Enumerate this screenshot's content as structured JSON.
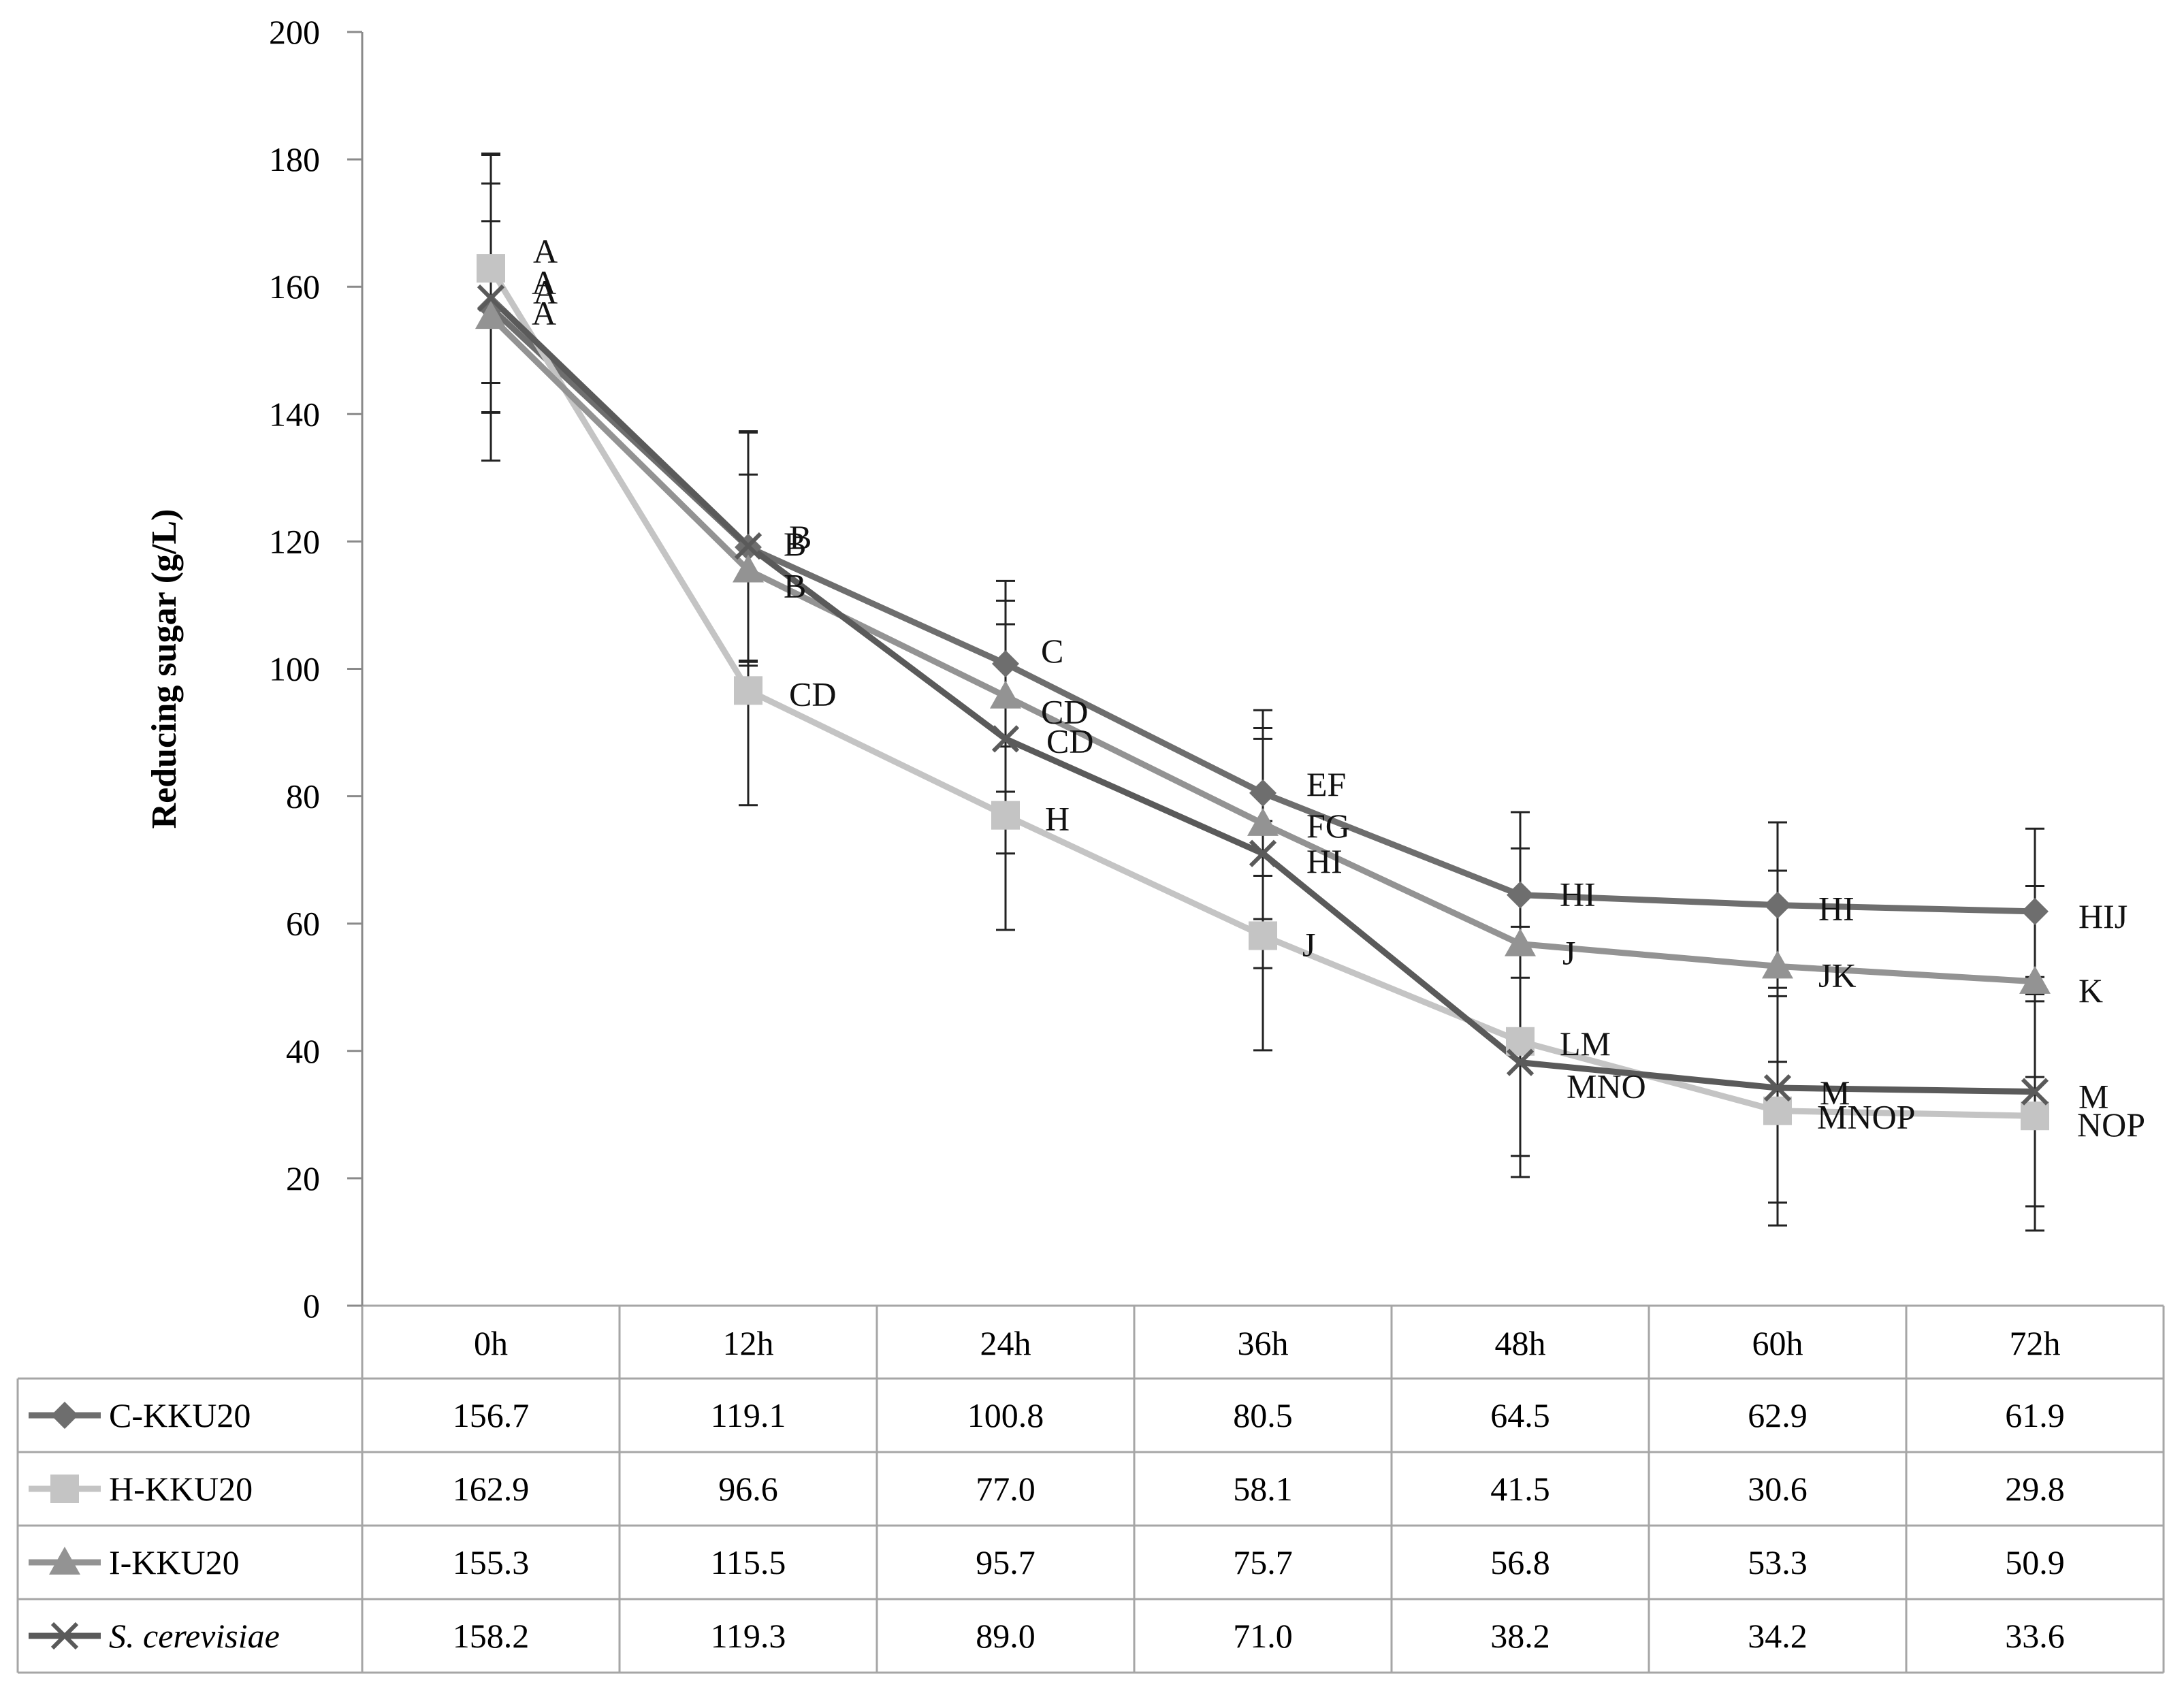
{
  "chart_data": {
    "type": "line",
    "title": "",
    "xlabel": "",
    "ylabel": "Reducing sugar (g/L)",
    "ylim": [
      0,
      200
    ],
    "yticks": [
      0,
      20,
      40,
      60,
      80,
      100,
      120,
      140,
      160,
      180,
      200
    ],
    "categories": [
      "0h",
      "12h",
      "24h",
      "36h",
      "48h",
      "60h",
      "72h"
    ],
    "legend": "data-table below chart",
    "series": [
      {
        "name": "C-KKU20",
        "italic": false,
        "color": "#6e6e6e",
        "marker": "diamond",
        "values": [
          156.7,
          119.1,
          100.8,
          80.5,
          64.5,
          62.9,
          61.9
        ],
        "value_labels": [
          "156.7",
          "119.1",
          "100.8",
          "80.5",
          "64.5",
          "62.9",
          "61.9"
        ],
        "error": [
          24,
          18,
          13,
          13,
          13,
          13,
          13
        ],
        "letters": [
          "A",
          "B",
          "C",
          "EF",
          "HI",
          "HI",
          "HIJ"
        ]
      },
      {
        "name": "H-KKU20",
        "italic": false,
        "color": "#c4c4c4",
        "marker": "square",
        "values": [
          162.9,
          96.6,
          77.0,
          58.1,
          41.5,
          30.6,
          29.8
        ],
        "value_labels": [
          "162.9",
          "96.6",
          "77.0",
          "58.1",
          "41.5",
          "30.6",
          "29.8"
        ],
        "error": [
          18,
          18,
          18,
          18,
          18,
          18,
          18
        ],
        "letters": [
          "A",
          "CD",
          "H",
          "J",
          "LM",
          "MNOP",
          "NOP"
        ]
      },
      {
        "name": "I-KKU20",
        "italic": false,
        "color": "#939393",
        "marker": "triangle",
        "values": [
          155.3,
          115.5,
          95.7,
          75.7,
          56.8,
          53.3,
          50.9
        ],
        "value_labels": [
          "155.3",
          "115.5",
          "95.7",
          "75.7",
          "56.8",
          "53.3",
          "50.9"
        ],
        "error": [
          15,
          15,
          15,
          15,
          15,
          15,
          15
        ],
        "letters": [
          "A",
          "B",
          "CD",
          "FG",
          "J",
          "JK",
          "K"
        ]
      },
      {
        "name": "S. cerevisiae",
        "italic": true,
        "color": "#5a5a5a",
        "marker": "x",
        "values": [
          158.2,
          119.3,
          89.0,
          71.0,
          38.2,
          34.2,
          33.6
        ],
        "value_labels": [
          "158.2",
          "119.3",
          "89.0",
          "71.0",
          "38.2",
          "34.2",
          "33.6"
        ],
        "error": [
          18,
          18,
          18,
          18,
          18,
          18,
          18
        ],
        "letters": [
          "A",
          "B",
          "CD",
          "HI",
          "MNO",
          "M",
          "M"
        ]
      }
    ]
  }
}
